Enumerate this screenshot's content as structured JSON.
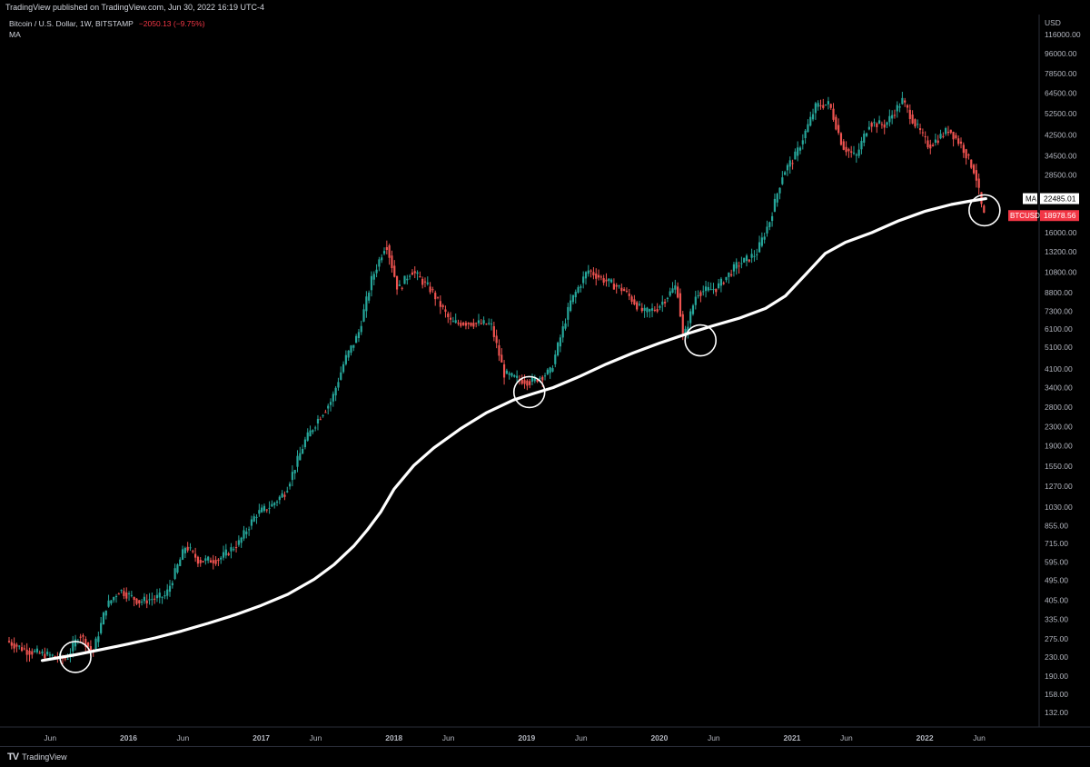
{
  "header": {
    "published": "TradingView published on TradingView.com, Jun 30, 2022 16:19 UTC-4",
    "symbol": "Bitcoin / U.S. Dollar, 1W, BITSTAMP",
    "change": "−2050.13 (−9.75%)",
    "indicator": "MA"
  },
  "footer": {
    "brand": "TradingView",
    "logo": "TV"
  },
  "colors": {
    "up": "#26a69a",
    "down": "#ef5350",
    "ma": "#ffffff",
    "price_badge": "#f23645"
  },
  "chart_data": {
    "type": "line",
    "title": "Bitcoin / U.S. Dollar, 1W, BITSTAMP",
    "scale": "log",
    "y_unit": "USD",
    "y_ticks": [
      116000,
      96000,
      78500,
      64500,
      52500,
      42500,
      34500,
      28500,
      22485.01,
      16000,
      13200,
      10800,
      8800,
      7300,
      6100,
      5100,
      4100,
      3400,
      2800,
      2300,
      1900,
      1550,
      1270,
      1030,
      855,
      715,
      595,
      495,
      405,
      335,
      275,
      230,
      190,
      158,
      132
    ],
    "y_tick_labels": [
      "116000.00",
      "96000.00",
      "78500.00",
      "64500.00",
      "52500.00",
      "42500.00",
      "34500.00",
      "28500.00",
      "",
      "16000.00",
      "13200.00",
      "10800.00",
      "8800.00",
      "7300.00",
      "6100.00",
      "5100.00",
      "4100.00",
      "3400.00",
      "2800.00",
      "2300.00",
      "1900.00",
      "1550.00",
      "1270.00",
      "1030.00",
      "855.00",
      "715.00",
      "595.00",
      "495.00",
      "405.00",
      "335.00",
      "275.00",
      "230.00",
      "190.00",
      "158.00",
      "132.00"
    ],
    "x_tick_labels": [
      "Jun",
      "2016",
      "Jun",
      "2017",
      "Jun",
      "2018",
      "Jun",
      "2019",
      "Jun",
      "2020",
      "Jun",
      "2021",
      "Jun",
      "2022",
      "Jun"
    ],
    "x_tick_dates": [
      2015.41,
      2016.0,
      2016.41,
      2017.0,
      2017.41,
      2018.0,
      2018.41,
      2019.0,
      2019.41,
      2020.0,
      2020.41,
      2021.0,
      2021.41,
      2022.0,
      2022.41
    ],
    "xlim": [
      2015.1,
      2022.8
    ],
    "price_series": {
      "name": "BTCUSD",
      "x": [
        2015.1,
        2015.25,
        2015.4,
        2015.55,
        2015.65,
        2015.75,
        2015.85,
        2015.95,
        2016.1,
        2016.3,
        2016.45,
        2016.55,
        2016.7,
        2016.85,
        2016.98,
        2017.1,
        2017.2,
        2017.35,
        2017.45,
        2017.55,
        2017.65,
        2017.75,
        2017.85,
        2017.96,
        2018.05,
        2018.15,
        2018.3,
        2018.45,
        2018.6,
        2018.75,
        2018.85,
        2018.95,
        2019.05,
        2019.2,
        2019.35,
        2019.48,
        2019.6,
        2019.75,
        2019.9,
        2020.0,
        2020.15,
        2020.2,
        2020.3,
        2020.45,
        2020.6,
        2020.75,
        2020.85,
        2020.95,
        2021.05,
        2021.2,
        2021.3,
        2021.4,
        2021.5,
        2021.6,
        2021.72,
        2021.85,
        2021.95,
        2022.05,
        2022.2,
        2022.3,
        2022.4,
        2022.46
      ],
      "y": [
        270,
        245,
        235,
        225,
        290,
        240,
        380,
        450,
        400,
        425,
        700,
        600,
        610,
        720,
        960,
        1050,
        1200,
        2000,
        2500,
        3000,
        4500,
        5800,
        10000,
        14500,
        9000,
        11000,
        9000,
        6500,
        6500,
        6400,
        3900,
        3700,
        3600,
        4000,
        8000,
        11000,
        10000,
        9000,
        7200,
        7500,
        9500,
        5500,
        8800,
        9200,
        11500,
        13000,
        18000,
        29000,
        35000,
        57000,
        58000,
        38000,
        34000,
        48000,
        47000,
        60000,
        47000,
        38000,
        45000,
        38000,
        29000,
        19000
      ]
    },
    "ma_series": {
      "name": "MA",
      "x": [
        2015.35,
        2015.6,
        2015.8,
        2016.0,
        2016.2,
        2016.4,
        2016.6,
        2016.8,
        2017.0,
        2017.2,
        2017.4,
        2017.55,
        2017.7,
        2017.8,
        2017.9,
        2018.0,
        2018.15,
        2018.3,
        2018.5,
        2018.7,
        2018.9,
        2019.05,
        2019.2,
        2019.4,
        2019.6,
        2019.8,
        2020.0,
        2020.2,
        2020.4,
        2020.6,
        2020.8,
        2020.95,
        2021.1,
        2021.25,
        2021.4,
        2021.6,
        2021.8,
        2022.0,
        2022.2,
        2022.35,
        2022.46
      ],
      "y": [
        222,
        235,
        248,
        262,
        278,
        298,
        322,
        350,
        385,
        430,
        500,
        580,
        700,
        820,
        980,
        1230,
        1560,
        1860,
        2250,
        2650,
        3000,
        3200,
        3400,
        3800,
        4300,
        4800,
        5300,
        5800,
        6300,
        6800,
        7500,
        8500,
        10500,
        13000,
        14500,
        16000,
        18000,
        19800,
        21200,
        22000,
        22485
      ]
    },
    "last_values": {
      "ma": "22485.01",
      "price": "18978.56"
    },
    "badge_labels": {
      "ma": "MA",
      "price": "BTCUSD"
    },
    "annotations": {
      "type": "circles",
      "points": [
        {
          "x": 2015.6,
          "y": 230
        },
        {
          "x": 2019.02,
          "y": 3250
        },
        {
          "x": 2020.31,
          "y": 5450
        },
        {
          "x": 2022.45,
          "y": 20000
        }
      ]
    }
  }
}
